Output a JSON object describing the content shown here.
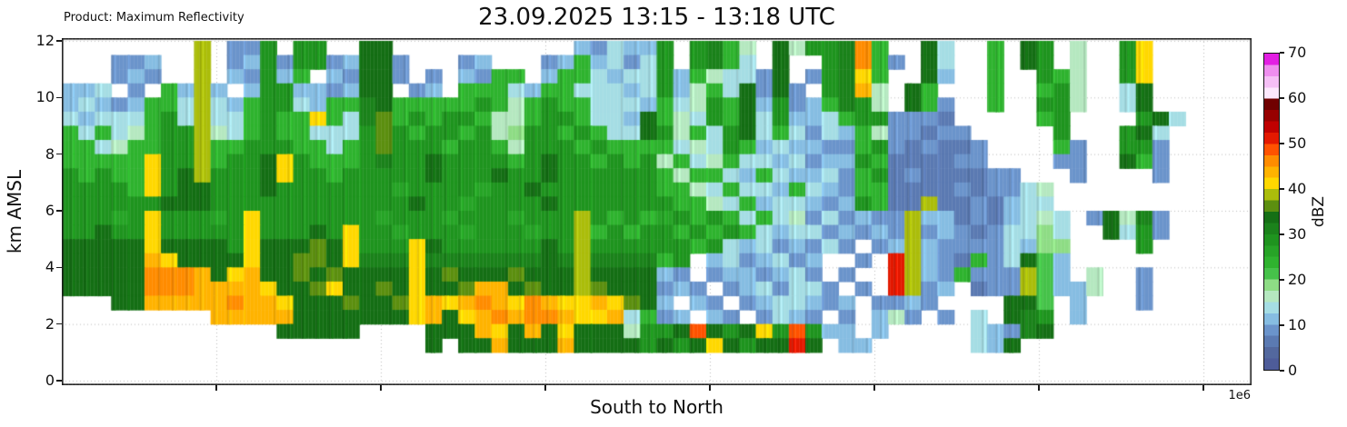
{
  "header": {
    "product_label": "Product: Maximum Reflectivity",
    "title": "23.09.2025 13:15 - 13:18 UTC"
  },
  "axes": {
    "ylabel": "km AMSL",
    "xlabel": "South to North",
    "y_ticks": [
      0,
      2,
      4,
      6,
      8,
      10,
      12
    ],
    "x_tick_count": 7,
    "x_tick_labels_visible": false,
    "x_offset_text": "1e6",
    "grid": "dotted"
  },
  "colorbar": {
    "label": "dBZ",
    "ticks": [
      0,
      10,
      20,
      30,
      40,
      50,
      60,
      70
    ],
    "min": 0,
    "max": 70,
    "colors_low_to_high": [
      "#4e5c99",
      "#53689e",
      "#5b7ab2",
      "#6b94cb",
      "#86bde2",
      "#a5dde4",
      "#b5e8c0",
      "#8edc85",
      "#46c24a",
      "#2fb32f",
      "#27a427",
      "#1f941f",
      "#1b821b",
      "#156f15",
      "#5c8f10",
      "#abbd0b",
      "#ffd800",
      "#ffb300",
      "#ff8c00",
      "#ff5200",
      "#e31900",
      "#c00000",
      "#970000",
      "#700000",
      "#fce8fc",
      "#f5bff5",
      "#ee8eee",
      "#e21fe2"
    ]
  },
  "chart_data": {
    "type": "heatmap",
    "title": "23.09.2025 13:15 - 13:18 UTC",
    "product": "Maximum Reflectivity",
    "xlabel": "South to North",
    "ylabel": "km AMSL",
    "value_unit": "dBZ",
    "value_range": [
      0,
      70
    ],
    "dbz_per_level": 2.5,
    "y_range_km": [
      0,
      12
    ],
    "rows_order": "top_to_bottom (12 km down to 0 km, 0.5 km per row)",
    "columns": 72,
    "level_chars": "0123456789ABCDEFGHIJKLMNOPQR",
    "empty_char": ".",
    "grid_rows": [
      "........F.33B.BB..DD...........43544B.BC96.D6BBCI9..D5..9.DB.6..BG......",
      "...334..F.34B3BB34DD3...34...3494535B.BC95.D..BCI93.D5..9.DB.6..BG......",
      "...343..F.43B49.43DD3.3.4399.4995455B496553D.3BCG9..D4..9..B96..BG......",
      "445.3.94F4.4BB4434DD.34.999549955545B4695D3D3.BCH6.D9...9..9B6..5D......",
      "45434995F549BB5499CD99999B969B995554956B9D4B349CB6.D93..9..BB6..5D......",
      "545559B5F559B99G95CE9B9BB9669BB9554D965B9D5B4459BB3332.....9B....BD5....",
      "959569BBF659B99555BEB9BB9B67BB9B955DB695BD5953549633233.....B...BD5.....",
      "995699BBF99BBB9959BEBBB9BB96BBB9B9999565B94544339B323223....93..BB3.....",
      "99999GBBF9BBDGB999BCBBDBBBB9BDBB9B9B695695545344B9222233....33..D93.....",
      "B9B99GBDFBBBDGBB9BBBBBDBBBDBBDBBBBBB9699549544539B23222233...3....3.....",
      "BBBB9GBDDBBBDBBBBBBBABBBBABBDBBBBBBB996595549543992222323356............",
      "BBBBBBDDDBBBBBBBBBBBBDBBABBBBDBBBBBBB99659455434B922F2232455............",
      "BBBABGBBBABGBBBBBBBABBBABBBABBBFB9B9AB9B95956353433F442324565.3D6C3.....",
      "BBDBBGBBBBBGBBBDBGBBABBBABBBABBF9B9BB9B9B9545534343F343235575..D5B3.....",
      "DDDDDGDDDDBGDDDEDGBBBGDBBBBBBDBFBBBBBB9B54534353.34F433335477....B......",
      "DDDDDHGDDDDGDDEEDGCCCGCCCCCCCDCFCCCC9B.4534534..3.KF432935D84...........",
      "DDDDDIIIHDGHDDEDEDDDDGDEDDDEDDDFDDDD43.3443453.3..KF439333F84.6..3......",
      "DDDDDIIIHHHHGDDEGDDEDGDDEHHDEDDFEDDD343.3453553.3.KF34.233F8446..3......",
      "...DDHHHHHIHHGDDDEDDEGHGHIHGIHGGHGED4.43.3455434.3343....DD8.4...3......",
      ".........HHHHHDDDDDDDGHDGHIHIIHGGH5934.43.3543.3.463.3.5.DCB.4..........",
      ".............DDDDD....DDDHGDHDGDDD6BBDJDBDGBJB44.4.....543CD............",
      "......................D.DDHDDDHDDDDBDBDGDBDDKD.44......54D..............",
      "........................................................................",
      "........................................................................"
    ]
  }
}
